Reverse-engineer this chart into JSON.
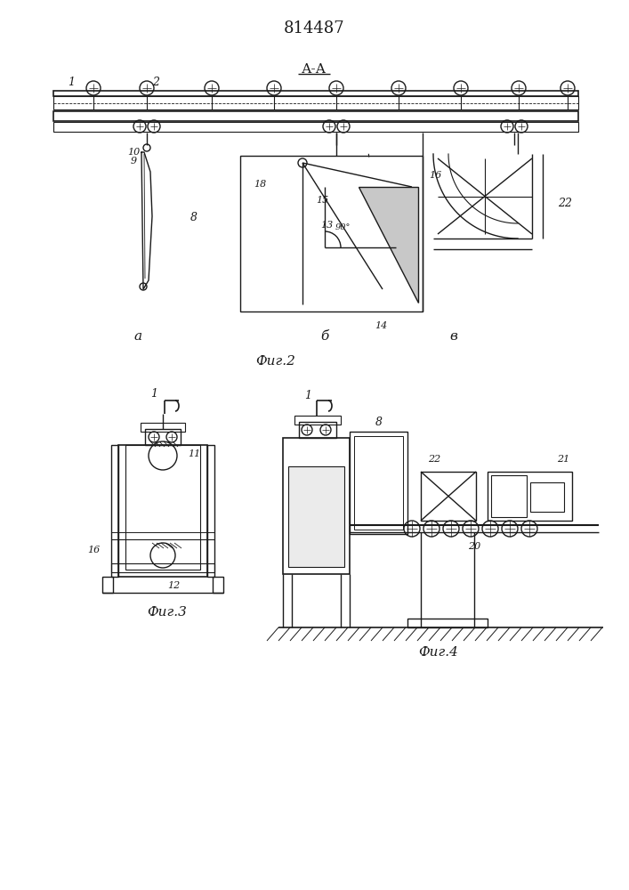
{
  "background_color": "#ffffff",
  "line_color": "#1a1a1a",
  "title": "814487",
  "fig2_section": "А-А",
  "fig2_caption": "Фиг.2",
  "fig3_caption": "Фиг.3",
  "fig4_caption": "Фиг.4",
  "sub_a": "а",
  "sub_b": "б",
  "sub_v": "в"
}
